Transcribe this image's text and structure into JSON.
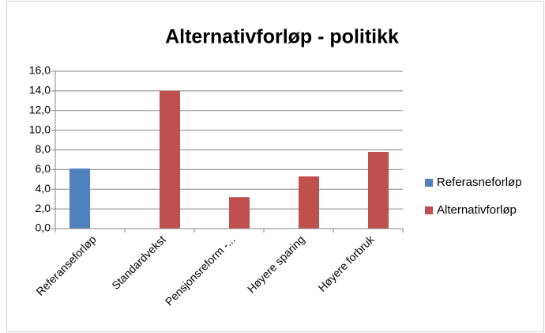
{
  "chart_data": {
    "type": "bar",
    "title": "Alternativforløp - politikk",
    "categories": [
      "Referanseforløp",
      "Standardvekst",
      "Pensjonsreform -...",
      "Høyere sparing",
      "Høyere forbruk"
    ],
    "series": [
      {
        "name": "Referasneforløp",
        "color": "#4f81bd",
        "values": [
          6.1,
          null,
          null,
          null,
          null
        ]
      },
      {
        "name": "Alternativforløp",
        "color": "#c0504d",
        "values": [
          null,
          14.0,
          3.2,
          5.3,
          7.8
        ]
      }
    ],
    "ylim": [
      0,
      16
    ],
    "yticks": [
      {
        "value": 0,
        "label": "0,0"
      },
      {
        "value": 2,
        "label": "2,0"
      },
      {
        "value": 4,
        "label": "4,0"
      },
      {
        "value": 6,
        "label": "6,0"
      },
      {
        "value": 8,
        "label": "8,0"
      },
      {
        "value": 10,
        "label": "10,0"
      },
      {
        "value": 12,
        "label": "12,0"
      },
      {
        "value": 14,
        "label": "14,0"
      },
      {
        "value": 16,
        "label": "16,0"
      }
    ],
    "grid": true,
    "legend": "right"
  }
}
